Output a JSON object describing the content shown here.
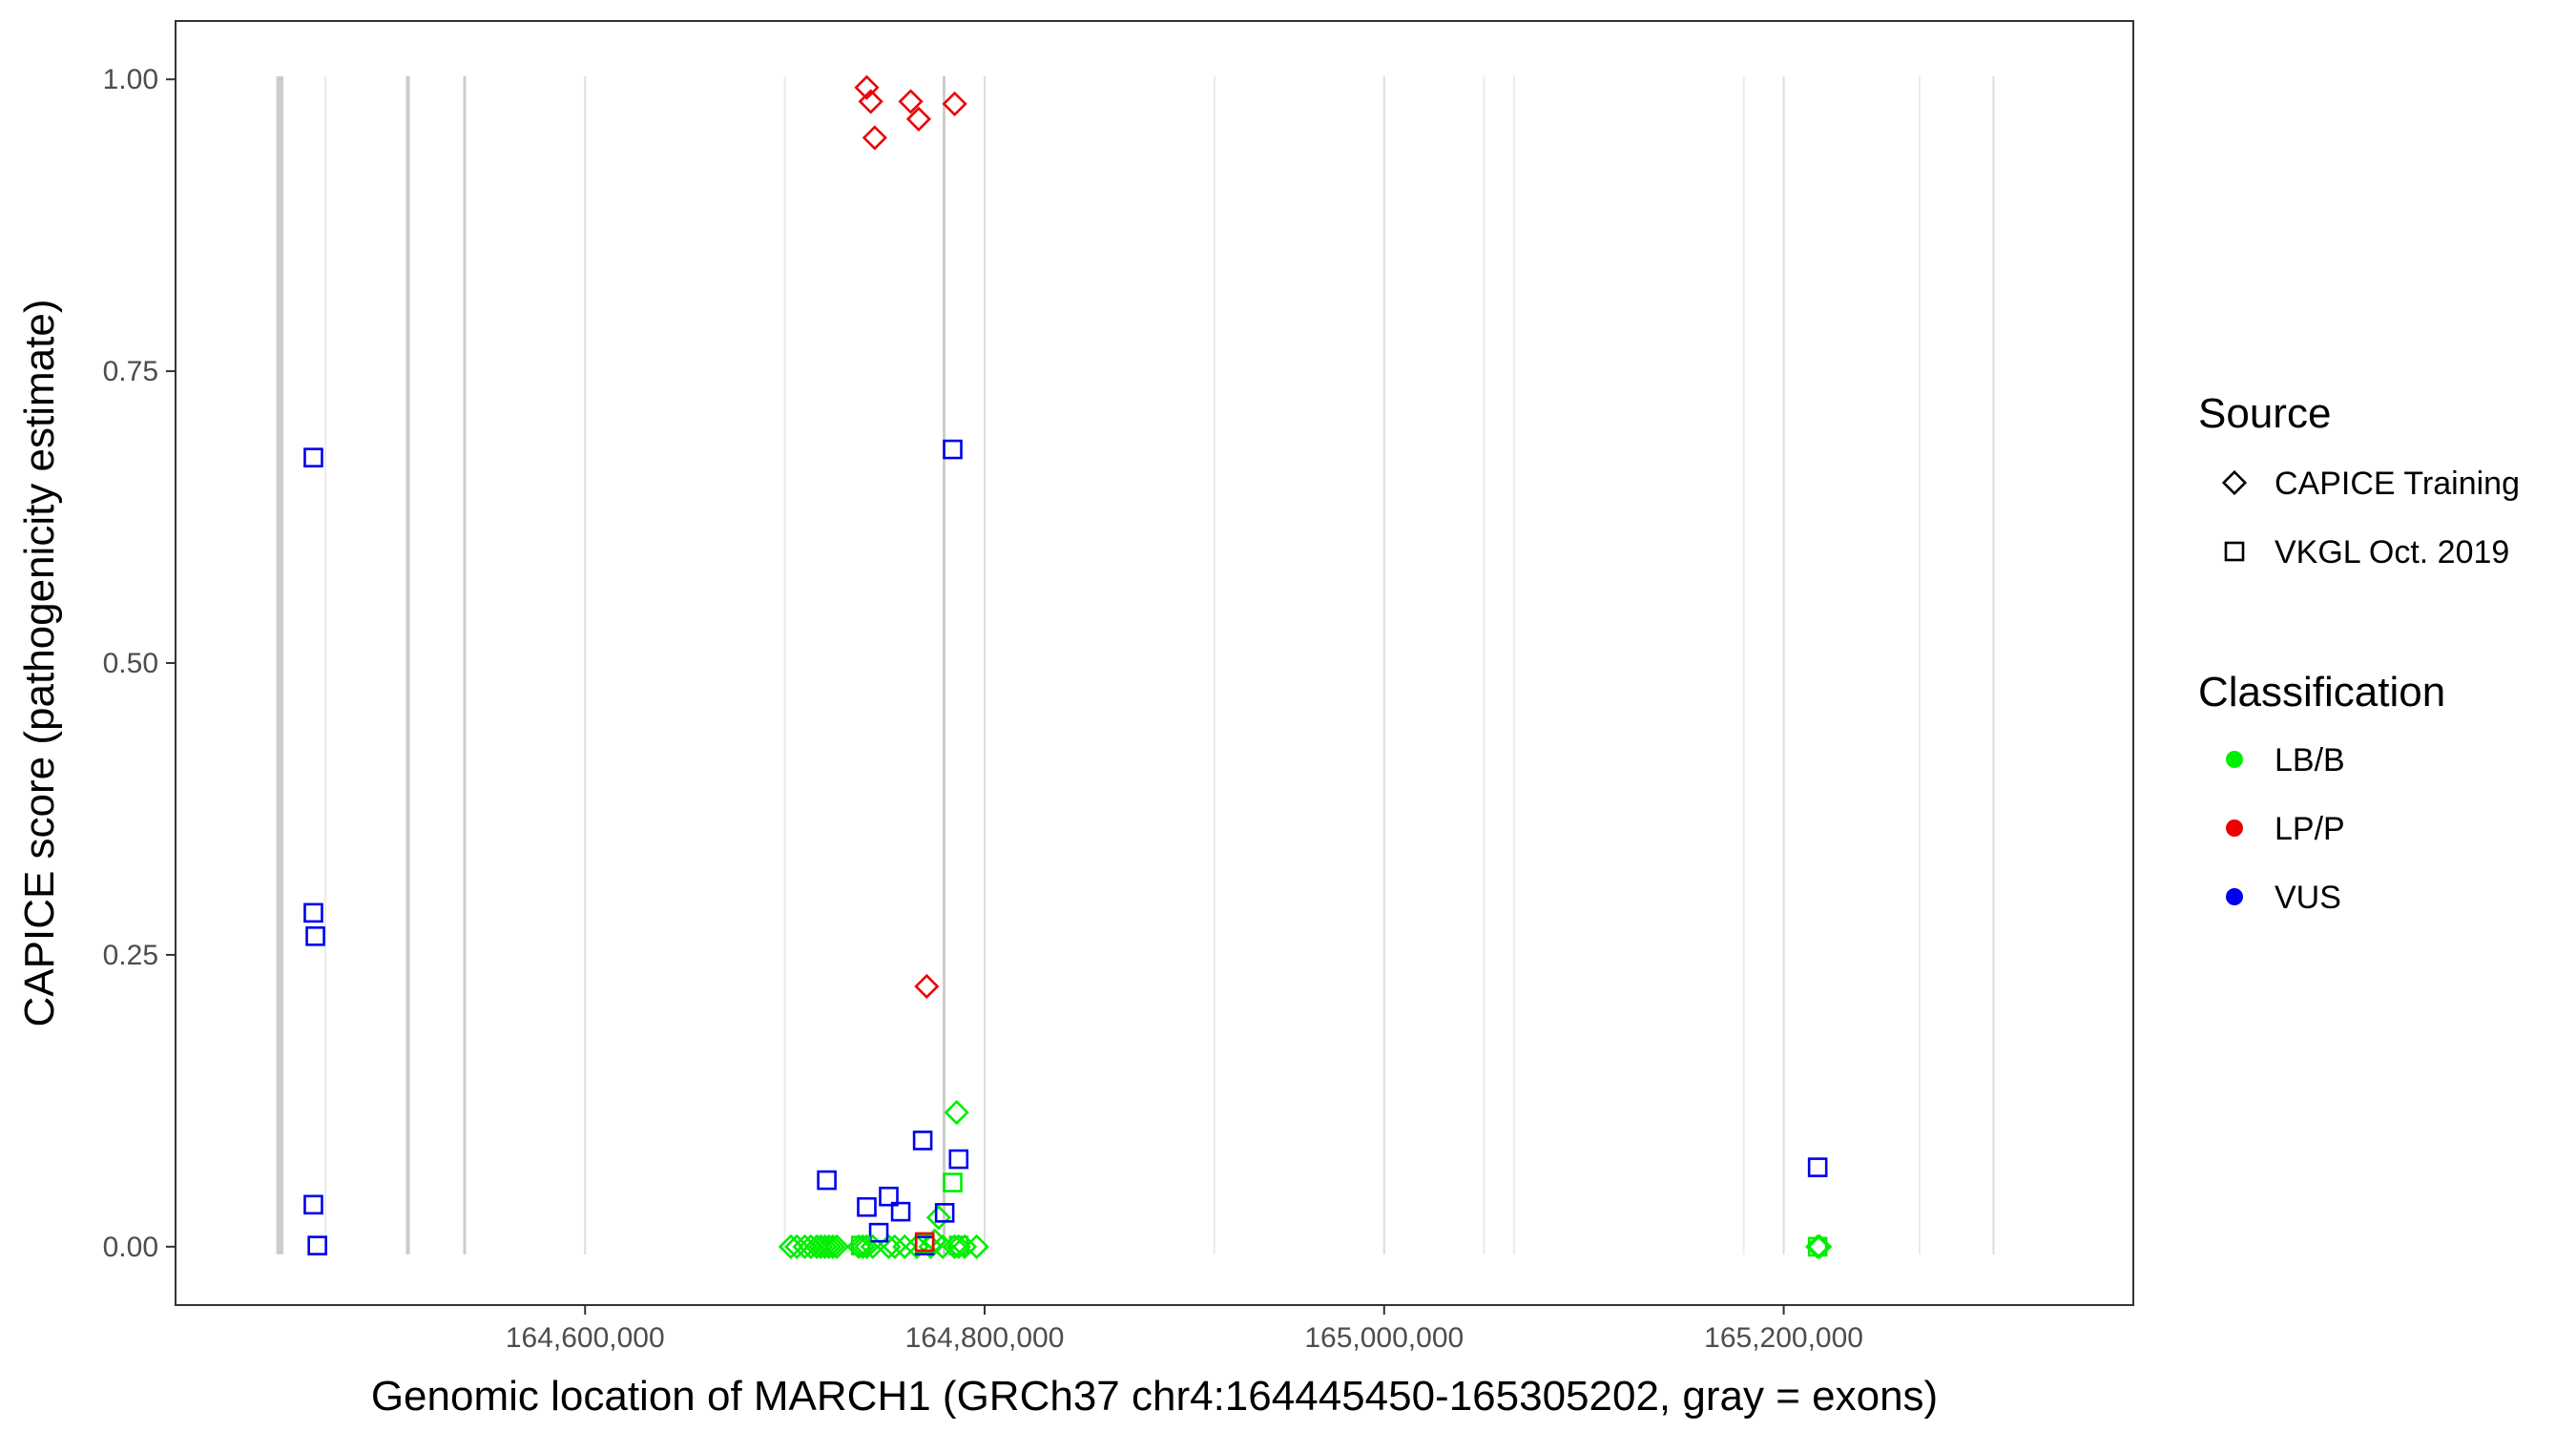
{
  "chart_data": {
    "type": "scatter",
    "xlabel": "Genomic location of MARCH1 (GRCh37 chr4:164445450-165305202, gray = exons)",
    "ylabel": "CAPICE score (pathogenicity estimate)",
    "xlim": [
      164395000,
      165375000
    ],
    "ylim": [
      -0.05,
      1.05
    ],
    "x_ticks": [
      164600000,
      164800000,
      165000000,
      165200000
    ],
    "x_tick_labels": [
      "164,600,000",
      "164,800,000",
      "165,000,000",
      "165,200,000"
    ],
    "y_ticks": [
      0,
      0.25,
      0.5,
      0.75,
      1.0
    ],
    "y_tick_labels": [
      "0.00",
      "0.25",
      "0.50",
      "0.75",
      "1.00"
    ],
    "grid": false,
    "exons": [
      {
        "start": 164445450,
        "end": 164449000
      },
      {
        "start": 164510300,
        "end": 164512300
      },
      {
        "start": 164539000,
        "end": 164539900
      },
      {
        "start": 164779000,
        "end": 164779700
      }
    ],
    "minor_gridlines": [
      164470000,
      164700000,
      164915000,
      165050000,
      165065000,
      165180000,
      165268000
    ],
    "major_gridlines": [
      164600000,
      164800000,
      165000000,
      165200000,
      165305000
    ],
    "legend": {
      "placement": "right",
      "source_title": "Source",
      "source_items": [
        {
          "label": "CAPICE Training",
          "shape": "diamond"
        },
        {
          "label": "VKGL Oct. 2019",
          "shape": "square"
        }
      ],
      "class_title": "Classification",
      "class_items": [
        {
          "label": "LB/B",
          "color": "#00ee00"
        },
        {
          "label": "LP/P",
          "color": "#ee0000"
        },
        {
          "label": "VUS",
          "color": "#0000ee"
        }
      ]
    },
    "colors": {
      "LB/B": "#00ee00",
      "LP/P": "#ee0000",
      "VUS": "#0000ee"
    },
    "series": [
      {
        "source": "CAPICE Training",
        "classification": "LP/P",
        "shape": "diamond",
        "points": [
          [
            164741000,
            0.993
          ],
          [
            164743000,
            0.981
          ],
          [
            164745000,
            0.95
          ],
          [
            164763000,
            0.981
          ],
          [
            164767000,
            0.966
          ],
          [
            164785000,
            0.979
          ],
          [
            164771000,
            0.223
          ]
        ]
      },
      {
        "source": "CAPICE Training",
        "classification": "LB/B",
        "shape": "diamond",
        "points": [
          [
            164786000,
            0.115
          ],
          [
            164777000,
            0.025
          ],
          [
            164775000,
            0.005
          ],
          [
            164703000,
            0.0
          ],
          [
            164706000,
            0.0
          ],
          [
            164710000,
            0.0
          ],
          [
            164713000,
            0.0
          ],
          [
            164716000,
            0.0
          ],
          [
            164718000,
            0.0
          ],
          [
            164720000,
            0.0
          ],
          [
            164722000,
            0.0
          ],
          [
            164724000,
            0.0
          ],
          [
            164726000,
            0.0
          ],
          [
            164737000,
            0.0
          ],
          [
            164739000,
            0.0
          ],
          [
            164741000,
            0.0
          ],
          [
            164744000,
            0.0
          ],
          [
            164752000,
            0.0
          ],
          [
            164755000,
            0.0
          ],
          [
            164760000,
            0.0
          ],
          [
            164766000,
            0.0
          ],
          [
            164773000,
            0.0
          ],
          [
            164779000,
            0.0
          ],
          [
            164785000,
            0.0
          ],
          [
            164787000,
            0.0
          ],
          [
            164790000,
            0.0
          ],
          [
            164796000,
            0.0
          ],
          [
            165217000,
            0.0
          ],
          [
            165218000,
            0.0
          ]
        ]
      },
      {
        "source": "VKGL Oct. 2019",
        "classification": "VUS",
        "shape": "square",
        "points": [
          [
            164464000,
            0.676
          ],
          [
            164464000,
            0.286
          ],
          [
            164465000,
            0.266
          ],
          [
            164464000,
            0.036
          ],
          [
            164466000,
            0.001
          ],
          [
            164784000,
            0.683
          ],
          [
            164769000,
            0.091
          ],
          [
            164787000,
            0.075
          ],
          [
            164721000,
            0.057
          ],
          [
            164752000,
            0.043
          ],
          [
            164741000,
            0.034
          ],
          [
            164758000,
            0.03
          ],
          [
            164780000,
            0.029
          ],
          [
            164747000,
            0.012
          ],
          [
            164770000,
            0.001
          ],
          [
            165217000,
            0.068
          ]
        ]
      },
      {
        "source": "VKGL Oct. 2019",
        "classification": "LB/B",
        "shape": "square",
        "points": [
          [
            164784000,
            0.055
          ],
          [
            164738000,
            0.001
          ],
          [
            164770000,
            0.003
          ],
          [
            164787000,
            0.001
          ],
          [
            165217000,
            0.0
          ]
        ]
      },
      {
        "source": "VKGL Oct. 2019",
        "classification": "LP/P",
        "shape": "square",
        "points": [
          [
            164770000,
            0.004
          ]
        ]
      }
    ]
  }
}
